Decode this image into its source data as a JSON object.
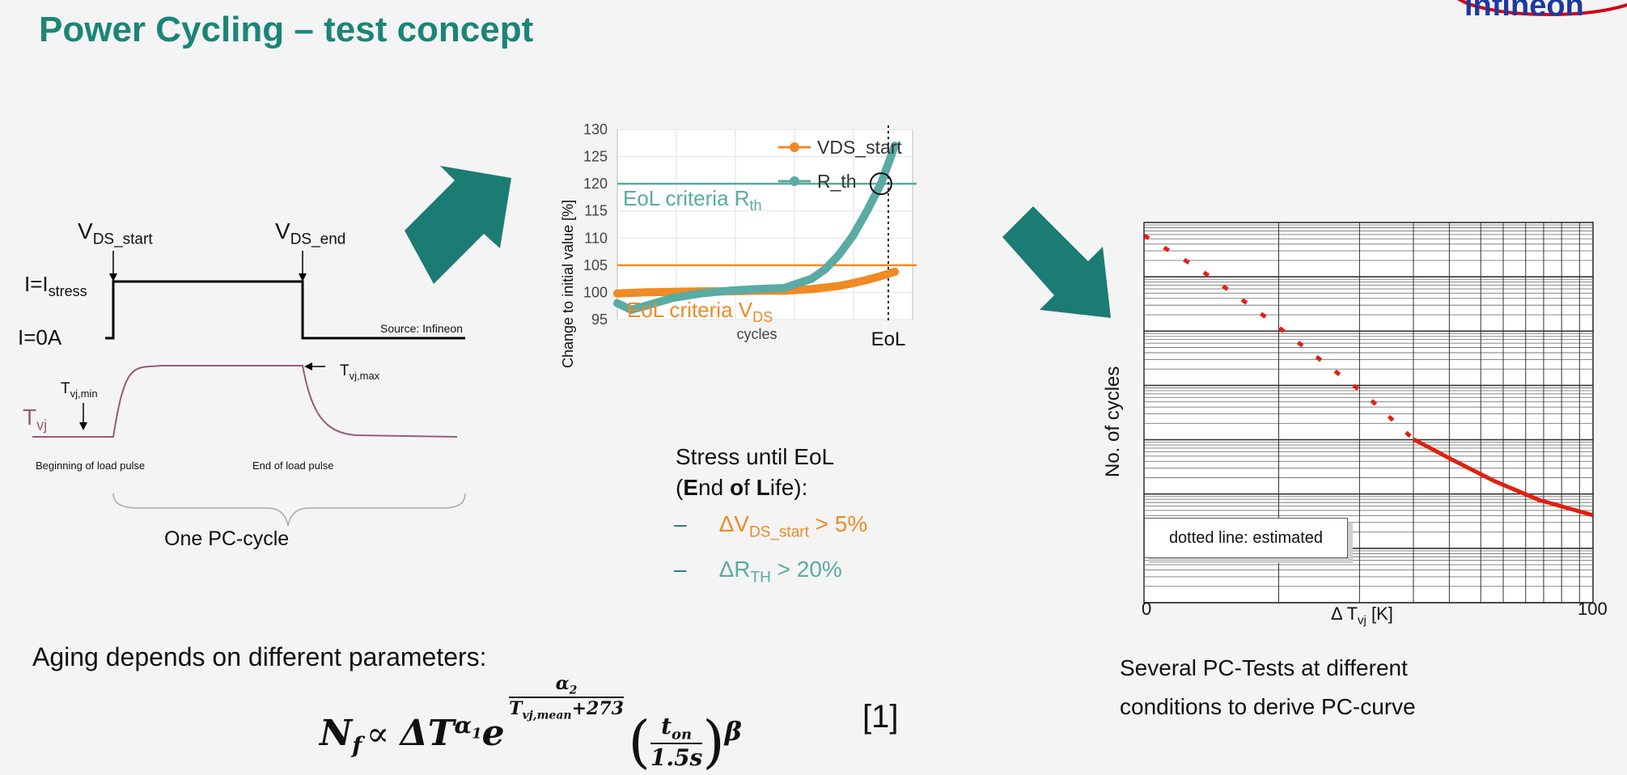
{
  "slide": {
    "title": "Power Cycling – test concept",
    "logo_text": "infineon"
  },
  "pulse_diagram": {
    "labels": {
      "vds_start_main": "V",
      "vds_start_sub": "DS_start",
      "vds_end_main": "V",
      "vds_end_sub": "DS_end",
      "i_stress_main": "I=I",
      "i_stress_sub": "stress",
      "i_zero": "I=0A",
      "source": "Source: Infineon",
      "tvj_main": "T",
      "tvj_sub": "vj",
      "tvj_min_main": "T",
      "tvj_min_sub": "vj,min",
      "tvj_max_main": "T",
      "tvj_max_sub": "vj,max",
      "begin": "Beginning of load pulse",
      "end": "End of load pulse",
      "cycle": "One PC-cycle"
    },
    "colors": {
      "current": "#000000",
      "temperature": "#9a5a78"
    }
  },
  "eol_chart": {
    "ylabel": "Change to initial value [%]",
    "xlabel": "cycles",
    "eol_label": "EoL",
    "yticks": [
      "130",
      "125",
      "120",
      "115",
      "110",
      "105",
      "100",
      "95"
    ],
    "legend": [
      "VDS_start",
      "R_th"
    ],
    "criteria_rth_main": "EoL criteria  R",
    "criteria_rth_sub": "th",
    "criteria_vds_main": "EoL criteria V",
    "criteria_vds_sub": "DS"
  },
  "stress_text": {
    "line1": "Stress until EoL",
    "line2_parts": [
      "(",
      "E",
      "nd ",
      "o",
      "f ",
      "L",
      "ife):"
    ],
    "dash": "–",
    "crit1_a": "ΔV",
    "crit1_sub": "DS_start",
    "crit1_b": " > 5%",
    "crit2_a": "ΔR",
    "crit2_sub": "TH",
    "crit2_b": " > 20%"
  },
  "pc_curve": {
    "ylabel": "No. of cycles",
    "xlabel_main": "Δ T",
    "xlabel_sub": "vj",
    "xlabel_unit": " [K]",
    "x_start": "0",
    "x_end": "100",
    "note": "dotted line: estimated",
    "caption_line1": "Several PC-Tests at different",
    "caption_line2": "conditions to derive PC-curve"
  },
  "aging": {
    "text": "Aging depends on different parameters:",
    "ref": "[1]"
  },
  "chart_data": {
    "type": "line",
    "xlabel": "cycles",
    "ylabel": "Change to initial value [%]",
    "ylim": [
      95,
      130
    ],
    "grid": true,
    "legend_position": "top-right",
    "series": [
      {
        "name": "VDS_start",
        "color": "#f08a24",
        "x": [
          0,
          0.1,
          0.2,
          0.3,
          0.4,
          0.5,
          0.6,
          0.7,
          0.8,
          0.85,
          0.9,
          0.95,
          1.0
        ],
        "values": [
          99.8,
          100.0,
          100.1,
          100.2,
          100.2,
          100.3,
          100.3,
          100.6,
          101.2,
          101.7,
          102.3,
          103.0,
          103.8
        ]
      },
      {
        "name": "R_th",
        "color": "#5aaba3",
        "x": [
          0,
          0.05,
          0.1,
          0.2,
          0.3,
          0.4,
          0.5,
          0.6,
          0.7,
          0.75,
          0.8,
          0.85,
          0.9,
          0.95,
          1.0
        ],
        "values": [
          98.0,
          96.8,
          97.5,
          99.0,
          99.8,
          100.3,
          100.6,
          100.8,
          102.5,
          104.3,
          107.0,
          110.5,
          115.0,
          120.0,
          127.0
        ]
      }
    ]
  },
  "colors": {
    "title": "#1b8577",
    "teal": "#1b7c74",
    "orange": "#f08a24",
    "rth": "#5aaba3",
    "pc_curve": "#e02010"
  }
}
